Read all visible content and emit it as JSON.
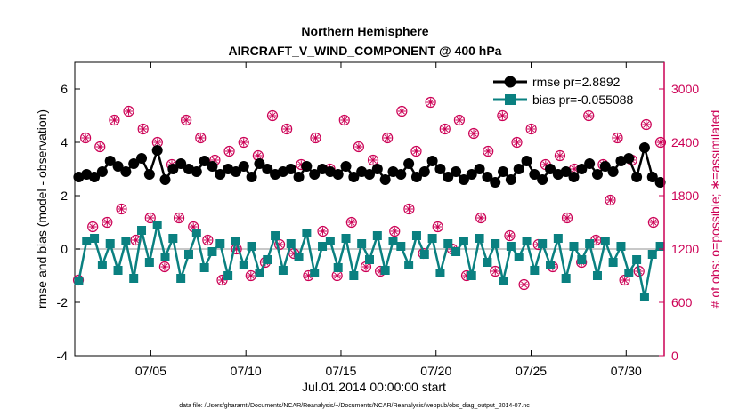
{
  "chart_data": {
    "type": "line",
    "title_line1": "Northern Hemisphere",
    "title_line2": "AIRCRAFT_V_WIND_COMPONENT @ 400 hPa",
    "xlabel": "Jul.01,2014 00:00:00 start",
    "ylabel_left": "rmse and bias (model - observation)",
    "ylabel_right": "# of obs: o=possible; ∗=assimilated",
    "footnote": "data file: /Users/gharamti/Documents/NCAR/Reanalysis/~/Documents/NCAR/Reanalysis/webpub/obs_diag_output_2014-07.nc",
    "xlim": [
      1,
      32
    ],
    "ylim_left": [
      -4,
      7
    ],
    "ylim_right": [
      0,
      3300
    ],
    "x_ticks": [
      {
        "value": 5,
        "label": "07/05"
      },
      {
        "value": 10,
        "label": "07/10"
      },
      {
        "value": 15,
        "label": "07/15"
      },
      {
        "value": 20,
        "label": "07/20"
      },
      {
        "value": 25,
        "label": "07/25"
      },
      {
        "value": 30,
        "label": "07/30"
      }
    ],
    "y_ticks_left": [
      {
        "value": -4,
        "label": "-4"
      },
      {
        "value": -2,
        "label": "-2"
      },
      {
        "value": 0,
        "label": "0"
      },
      {
        "value": 2,
        "label": "2"
      },
      {
        "value": 4,
        "label": "4"
      },
      {
        "value": 6,
        "label": "6"
      }
    ],
    "y_ticks_right": [
      {
        "value": 0,
        "label": "0"
      },
      {
        "value": 600,
        "label": "600"
      },
      {
        "value": 1200,
        "label": "1200"
      },
      {
        "value": 1800,
        "label": "1800"
      },
      {
        "value": 2400,
        "label": "2400"
      },
      {
        "value": 3000,
        "label": "3000"
      }
    ],
    "colors": {
      "rmse": "#000000",
      "bias": "#0a8080",
      "obs": "#cc0055",
      "zero": "#c8c8c8",
      "axis_right": "#cc0055"
    },
    "series": [
      {
        "name": "rmse pr=2.8892",
        "axis": "left",
        "values": [
          2.7,
          2.8,
          2.7,
          2.9,
          3.3,
          3.1,
          2.9,
          3.2,
          3.4,
          2.8,
          3.7,
          2.6,
          3.0,
          3.2,
          3.0,
          2.9,
          3.3,
          3.1,
          2.8,
          3.0,
          2.9,
          3.1,
          2.7,
          3.2,
          3.0,
          2.8,
          2.9,
          3.0,
          2.7,
          3.1,
          2.8,
          3.0,
          2.9,
          2.8,
          3.1,
          2.7,
          2.9,
          2.8,
          3.0,
          2.6,
          2.9,
          2.8,
          3.2,
          2.7,
          2.9,
          3.3,
          3.0,
          2.7,
          2.9,
          2.6,
          2.8,
          3.0,
          2.7,
          2.5,
          2.9,
          2.6,
          3.0,
          3.3,
          2.8,
          2.6,
          3.0,
          2.8,
          2.9,
          2.7,
          3.0,
          3.2,
          2.8,
          3.1,
          2.9,
          3.3,
          3.4,
          2.7,
          3.8,
          2.7,
          2.5
        ],
        "marker": "circle"
      },
      {
        "name": "bias pr=-0.055088",
        "axis": "left",
        "values": [
          -1.2,
          0.3,
          0.4,
          -0.6,
          0.2,
          -0.8,
          0.3,
          -1.1,
          0.7,
          -0.5,
          0.9,
          -0.3,
          0.4,
          -1.1,
          -0.2,
          0.6,
          -0.7,
          -0.1,
          0.2,
          -1.0,
          0.3,
          -0.6,
          0.1,
          -0.9,
          -0.4,
          0.5,
          -0.8,
          0.2,
          -0.3,
          0.6,
          -0.9,
          0.1,
          0.3,
          -0.7,
          0.4,
          -1.0,
          0.2,
          -0.4,
          0.5,
          -0.8,
          0.3,
          0.1,
          -0.6,
          0.5,
          -0.2,
          0.4,
          -0.9,
          0.2,
          -0.1,
          0.3,
          -1.0,
          0.4,
          -0.5,
          0.2,
          -1.2,
          0.1,
          -0.3,
          0.3,
          -0.8,
          0.2,
          -0.6,
          0.4,
          -1.1,
          0.1,
          -0.4,
          0.2,
          -1.0,
          0.3,
          -0.5,
          0.1,
          -0.9,
          -0.4,
          -1.8,
          -0.2,
          0.1
        ],
        "marker": "square"
      },
      {
        "name": "obs possible",
        "axis": "right",
        "values": [
          850,
          2450,
          1450,
          2350,
          1500,
          2650,
          1650,
          2750,
          1300,
          2550,
          1550,
          2400,
          1000,
          2150,
          1550,
          2650,
          1450,
          2450,
          1300,
          2200,
          850,
          2300,
          1200,
          2400,
          900,
          2250,
          1050,
          2700,
          1250,
          2550,
          1150,
          2150,
          900,
          2450,
          1400,
          2100,
          900,
          2650,
          1500,
          2350,
          1000,
          2200,
          950,
          2450,
          1400,
          2750,
          1650,
          2300,
          1150,
          2850,
          1450,
          2550,
          1200,
          2650,
          900,
          2500,
          1550,
          2300,
          950,
          2700,
          1350,
          2400,
          800,
          2550,
          1250,
          2150,
          1000,
          2250,
          1550,
          2100,
          1050,
          2700,
          1300,
          2150,
          1750,
          2450,
          850,
          2200,
          950,
          2600,
          1500,
          2400
        ],
        "marker": "circle-open"
      },
      {
        "name": "obs assimilated",
        "axis": "right",
        "values": [
          850,
          2450,
          1450,
          2350,
          1500,
          2650,
          1650,
          2750,
          1300,
          2550,
          1550,
          2400,
          1000,
          2150,
          1550,
          2650,
          1450,
          2450,
          1300,
          2200,
          850,
          2300,
          1200,
          2400,
          900,
          2250,
          1050,
          2700,
          1250,
          2550,
          1150,
          2150,
          900,
          2450,
          1400,
          2100,
          900,
          2650,
          1500,
          2350,
          1000,
          2200,
          950,
          2450,
          1400,
          2750,
          1650,
          2300,
          1150,
          2850,
          1450,
          2550,
          1200,
          2650,
          900,
          2500,
          1550,
          2300,
          950,
          2700,
          1350,
          2400,
          800,
          2550,
          1250,
          2150,
          1000,
          2250,
          1550,
          2100,
          1050,
          2700,
          1300,
          2150,
          1750,
          2450,
          850,
          2200,
          950,
          2600,
          1500,
          2400
        ],
        "marker": "asterisk"
      }
    ],
    "legend_position": "top-right"
  }
}
